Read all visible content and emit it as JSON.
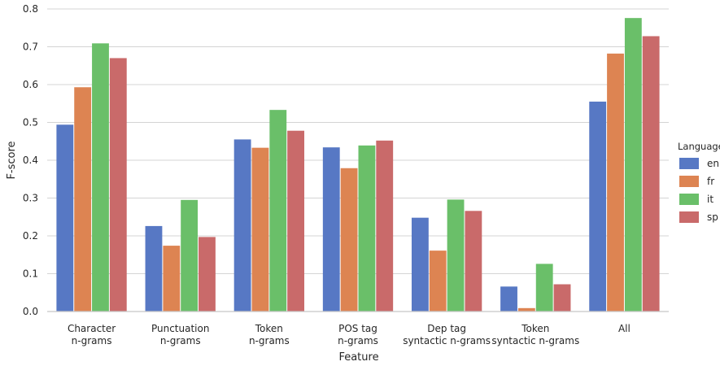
{
  "chart_data": {
    "type": "bar",
    "title": "",
    "xlabel": "Feature",
    "ylabel": "F-score",
    "ylim": [
      0,
      0.8
    ],
    "yticks": [
      "0.0",
      "0.1",
      "0.2",
      "0.3",
      "0.4",
      "0.5",
      "0.6",
      "0.7",
      "0.8"
    ],
    "grid": "horizontal",
    "legend_position": "right",
    "categories": [
      [
        "Character",
        "n-grams"
      ],
      [
        "Punctuation",
        "n-grams"
      ],
      [
        "Token",
        "n-grams"
      ],
      [
        "POS tag",
        "n-grams"
      ],
      [
        "Dep tag",
        "syntactic n-grams"
      ],
      [
        "Token",
        "syntactic n-grams"
      ],
      [
        "All"
      ]
    ],
    "legend_title": "Language",
    "series": [
      {
        "name": "en",
        "color": "#5778c4",
        "values": [
          0.494,
          0.226,
          0.455,
          0.434,
          0.248,
          0.066,
          0.555
        ]
      },
      {
        "name": "fr",
        "color": "#dd8452",
        "values": [
          0.593,
          0.174,
          0.433,
          0.379,
          0.161,
          0.009,
          0.682
        ]
      },
      {
        "name": "it",
        "color": "#6abf69",
        "values": [
          0.709,
          0.295,
          0.533,
          0.439,
          0.296,
          0.126,
          0.776
        ]
      },
      {
        "name": "sp",
        "color": "#c96a6a",
        "values": [
          0.67,
          0.197,
          0.478,
          0.452,
          0.266,
          0.072,
          0.728
        ]
      }
    ]
  }
}
